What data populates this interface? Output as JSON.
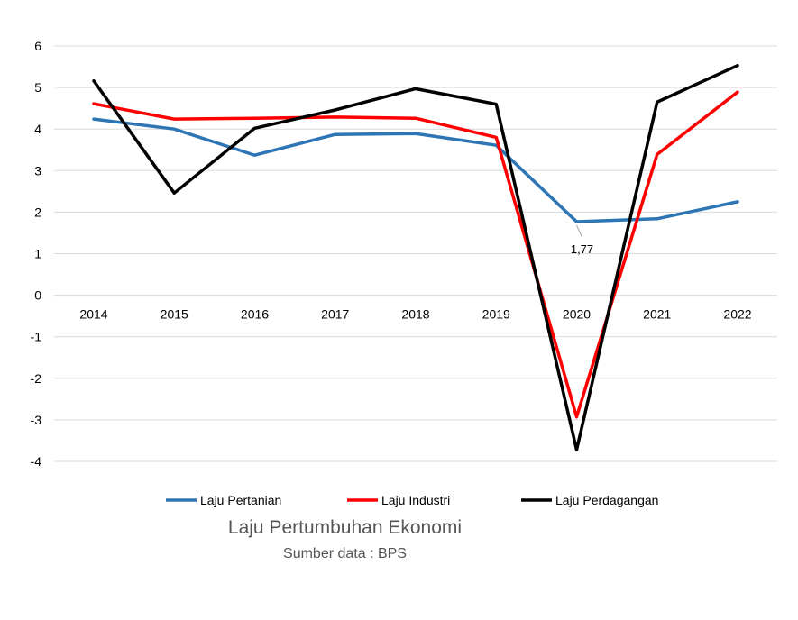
{
  "caption": {
    "title": "Laju Pertumbuhan Ekonomi",
    "subtitle": "Sumber data : BPS"
  },
  "chart_data": {
    "type": "line",
    "x": [
      "2014",
      "2015",
      "2016",
      "2017",
      "2018",
      "2019",
      "2020",
      "2021",
      "2022"
    ],
    "ylim": [
      -4,
      6
    ],
    "yticks": [
      "6",
      "5",
      "4",
      "3",
      "2",
      "1",
      "0",
      "-1",
      "-2",
      "-3",
      "-4"
    ],
    "grid": true,
    "legend_position": "bottom",
    "series": [
      {
        "name": "Laju Pertanian",
        "color": "#2E75B6",
        "values": [
          4.24,
          4.0,
          3.37,
          3.87,
          3.89,
          3.61,
          1.77,
          1.84,
          2.25
        ]
      },
      {
        "name": "Laju Industri",
        "color": "#FF0000",
        "values": [
          4.61,
          4.24,
          4.26,
          4.29,
          4.26,
          3.8,
          -2.93,
          3.39,
          4.89
        ]
      },
      {
        "name": "Laju Perdagangan",
        "color": "#000000",
        "values": [
          5.16,
          2.46,
          4.02,
          4.46,
          4.97,
          4.6,
          -3.72,
          4.65,
          5.53
        ]
      }
    ],
    "annotations": [
      {
        "series": 0,
        "index": 6,
        "text": "1,77"
      }
    ]
  }
}
